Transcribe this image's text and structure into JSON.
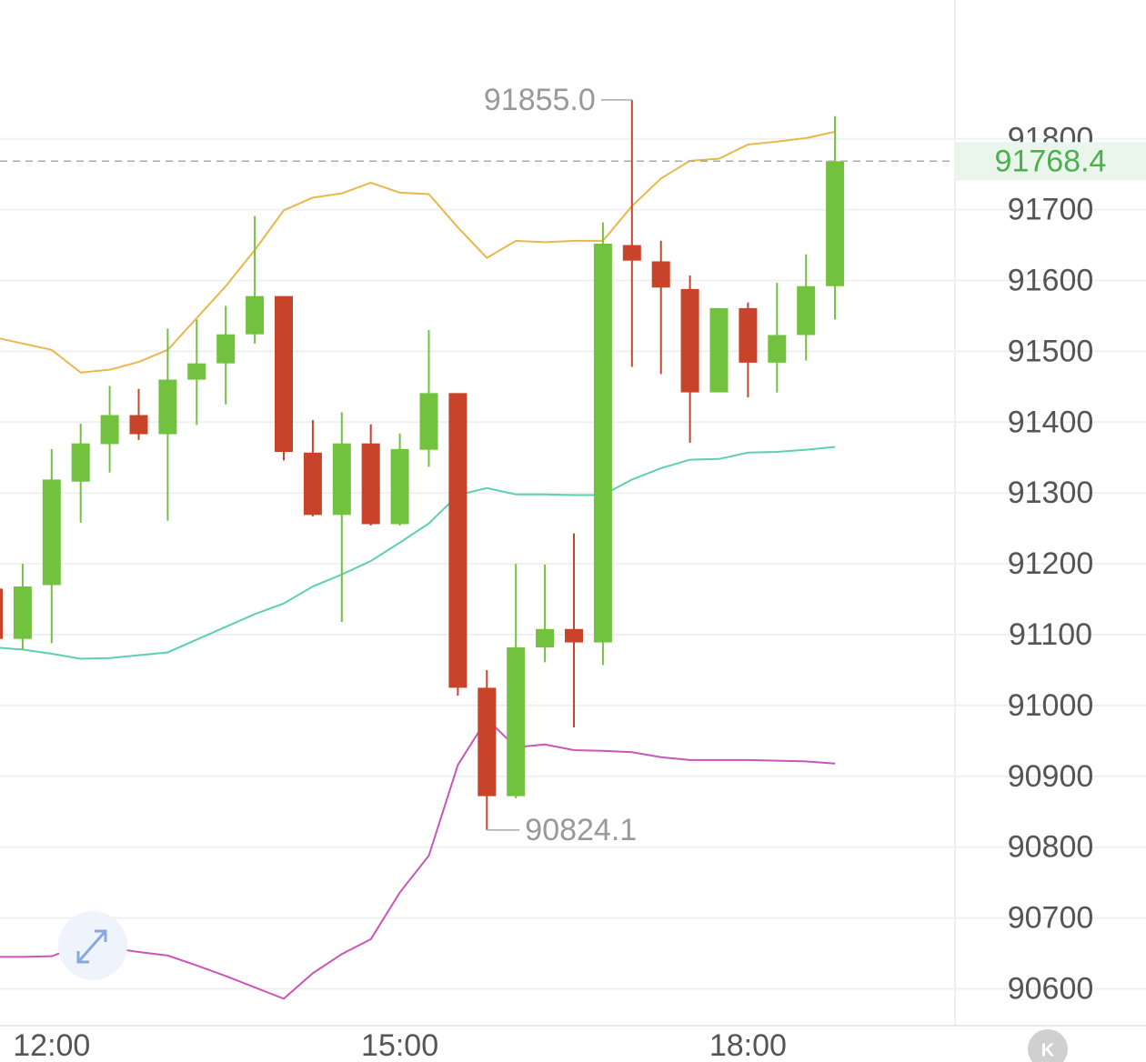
{
  "chart_data": {
    "type": "candlestick",
    "categories": [
      null,
      null,
      "12:00",
      null,
      null,
      null,
      null,
      null,
      null,
      null,
      null,
      null,
      null,
      null,
      "15:00",
      null,
      null,
      null,
      null,
      null,
      null,
      null,
      null,
      null,
      null,
      null,
      "18:00",
      null,
      null,
      null
    ],
    "open": [
      91165,
      91094,
      91170,
      91316,
      91369,
      91410,
      91383,
      91460,
      91483,
      91524,
      91578,
      91357,
      91269,
      91370,
      91256,
      91361,
      91441,
      91025,
      90872,
      91082,
      91108,
      91089,
      91650,
      91627,
      91588,
      91442,
      91561,
      91484,
      91523,
      91592
    ],
    "high": [
      91165,
      91200,
      91362,
      91398,
      91451,
      91447,
      91532,
      91545,
      91564,
      91691,
      91578,
      91403,
      91414,
      91397,
      91384,
      91530,
      91441,
      91050,
      91200,
      91199,
      91243,
      91682,
      91855.0,
      91656,
      91607,
      91561,
      91569,
      91597,
      91637,
      91832
    ],
    "low": [
      91094,
      91079,
      91088,
      91258,
      91329,
      91375,
      91261,
      91396,
      91425,
      91511,
      91346,
      91267,
      91118,
      91254,
      91254,
      91337,
      91014,
      90824.1,
      90869,
      91061,
      90969,
      91057,
      91478,
      91468,
      91371,
      91442,
      91435,
      91442,
      91487,
      91545
    ],
    "close": [
      91094,
      91168,
      91319,
      91370,
      91410,
      91383,
      91460,
      91483,
      91524,
      91578,
      91358,
      91269,
      91370,
      91256,
      91362,
      91441,
      91025,
      90872,
      91082,
      91108,
      91089,
      91652,
      91628,
      91590,
      91442,
      91561,
      91484,
      91523,
      91592,
      91768.4
    ],
    "up_color": "#72c23f",
    "down_color": "#c8432a",
    "lines": [
      {
        "color": "#e8b84a",
        "values": [
          91520,
          91511,
          91502,
          91470,
          91474,
          91485,
          91502,
          91547,
          91592,
          91643,
          91699,
          91717,
          91723,
          91738,
          91724,
          91722,
          91675,
          91632,
          91656,
          91654,
          91656,
          91656,
          91705,
          91744,
          91769,
          91772,
          91792,
          91796,
          91801,
          91810
        ]
      },
      {
        "color": "#5ccfb5",
        "values": [
          91082,
          91079,
          91073,
          91066,
          91067,
          91071,
          91075,
          91093,
          91111,
          91129,
          91144,
          91168,
          91185,
          91204,
          91230,
          91257,
          91297,
          91307,
          91298,
          91298,
          91297,
          91297,
          91319,
          91335,
          91347,
          91348,
          91357,
          91358,
          91361,
          91365
        ]
      },
      {
        "color": "#c956b8",
        "values": [
          90645,
          90645,
          90646,
          90661,
          90658,
          90652,
          90647,
          90633,
          90618,
          90602,
          90586,
          90622,
          90649,
          90670,
          90736,
          90788,
          90916,
          90981,
          90941,
          90945,
          90937,
          90936,
          90934,
          90927,
          90923,
          90923,
          90923,
          90922,
          90921,
          90918
        ]
      }
    ],
    "ylim": [
      90548,
      91996
    ],
    "yticks": [
      90600,
      90700,
      90800,
      90900,
      91000,
      91100,
      91200,
      91300,
      91400,
      91500,
      91600,
      91700,
      91800
    ],
    "grid": true,
    "max_annotation": {
      "value": 91855.0,
      "label": "91855.0"
    },
    "min_annotation": 90824.1,
    "last_price": 91768.4,
    "last_price_color": "#4caf50",
    "k_button": "K"
  }
}
